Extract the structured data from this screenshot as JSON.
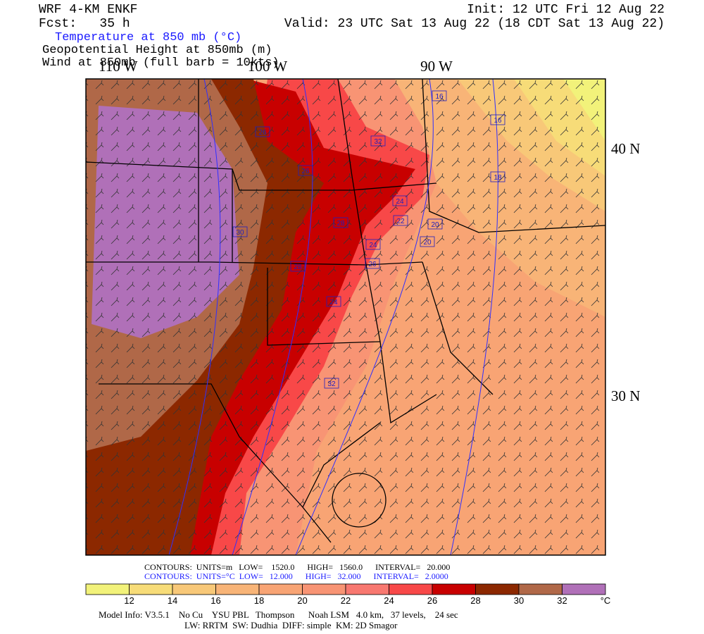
{
  "header": {
    "model": "WRF 4-KM ENKF",
    "forecast": "Fcst:   35 h",
    "field1": "Temperature at 850 mb (°C)",
    "field2": "Geopotential Height at 850mb (m)",
    "field3": "Wind at 850mb (full barb = 10kts)",
    "init": "Init: 12 UTC Fri 12 Aug 22",
    "valid": "Valid: 23 UTC Sat 13 Aug 22 (18 CDT Sat 13 Aug 22)"
  },
  "axes": {
    "lon_labels": [
      "110 W",
      "100 W",
      "90 W"
    ],
    "lat_labels": [
      "40 N",
      "30 N"
    ]
  },
  "contour_labels": [
    "16",
    "16",
    "18",
    "26",
    "32",
    "26",
    "24",
    "22",
    "20",
    "20",
    "30",
    "28",
    "24",
    "28",
    "26",
    "24",
    "32"
  ],
  "footer": {
    "height_contours": "CONTOURS:  UNITS=m   LOW=    1520.0      HIGH=   1560.0      INTERVAL=   20.000",
    "temp_contours": "CONTOURS:  UNITS=°C  LOW=   12.000      HIGH=   32.000      INTERVAL=   2.0000",
    "model_info": "Model Info: V3.5.1    No Cu    YSU PBL   Thompson      Noah LSM   4.0 km,   37 levels,    24 sec",
    "physics": "LW: RRTM  SW: Dudhia  DIFF: simple  KM: 2D Smagor"
  },
  "colorbar": {
    "colors": [
      "#f2f27a",
      "#f7dc78",
      "#f8c878",
      "#f8b477",
      "#f8a474",
      "#f89474",
      "#f87870",
      "#f84848",
      "#c80000",
      "#8c2800",
      "#b06848",
      "#b070b8"
    ],
    "ticks": [
      "12",
      "14",
      "16",
      "18",
      "20",
      "22",
      "24",
      "26",
      "28",
      "30",
      "32",
      "°C"
    ]
  }
}
